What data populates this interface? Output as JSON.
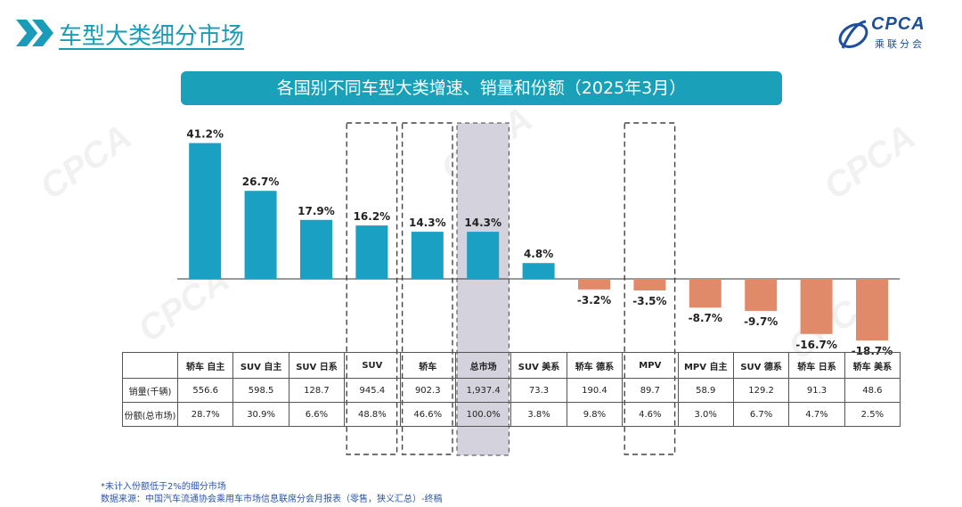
{
  "header": {
    "title": "车型大类细分市场",
    "logo_text": "CPCA",
    "logo_sub": "乘联分会"
  },
  "banner_title": "各国别不同车型大类增速、销量和份额（2025年3月）",
  "colors": {
    "positive": "#1aa0c2",
    "negative": "#e08a6a",
    "highlight": "#d4d3dd",
    "banner": "#1aa0b8",
    "title": "#1a9bb8"
  },
  "chart_data": {
    "type": "bar",
    "categories": [
      "轿车 自主",
      "SUV 自主",
      "SUV 日系",
      "SUV",
      "轿车",
      "总市场",
      "SUV 美系",
      "轿车 德系",
      "MPV",
      "MPV 自主",
      "SUV 德系",
      "轿车 日系",
      "轿车 美系"
    ],
    "values": [
      41.2,
      26.7,
      17.9,
      16.2,
      14.3,
      14.3,
      4.8,
      -3.2,
      -3.5,
      -8.7,
      -9.7,
      -16.7,
      -18.7
    ],
    "data_labels": [
      "41.2%",
      "26.7%",
      "17.9%",
      "16.2%",
      "14.3%",
      "14.3%",
      "4.8%",
      "-3.2%",
      "-3.5%",
      "-8.7%",
      "-9.7%",
      "-16.7%",
      "-18.7%"
    ],
    "boxed_categories": [
      3,
      4,
      8
    ],
    "shaded_category": 5,
    "grid": false,
    "legend": "none"
  },
  "table": {
    "row_labels": [
      "销量(千辆)",
      "份额(总市场)"
    ],
    "sales": [
      "556.6",
      "598.5",
      "128.7",
      "945.4",
      "902.3",
      "1,937.4",
      "73.3",
      "190.4",
      "89.7",
      "58.9",
      "129.2",
      "91.3",
      "48.6"
    ],
    "shares": [
      "28.7%",
      "30.9%",
      "6.6%",
      "48.8%",
      "46.6%",
      "100.0%",
      "3.8%",
      "9.8%",
      "4.6%",
      "3.0%",
      "6.7%",
      "4.7%",
      "2.5%"
    ]
  },
  "footnotes": {
    "note": "*未计入份额低于2%的细分市场",
    "source": "数据来源：中国汽车流通协会乘用车市场信息联席分会月报表（零售，狭义汇总）-终稿"
  },
  "watermark_text": "CPCA"
}
